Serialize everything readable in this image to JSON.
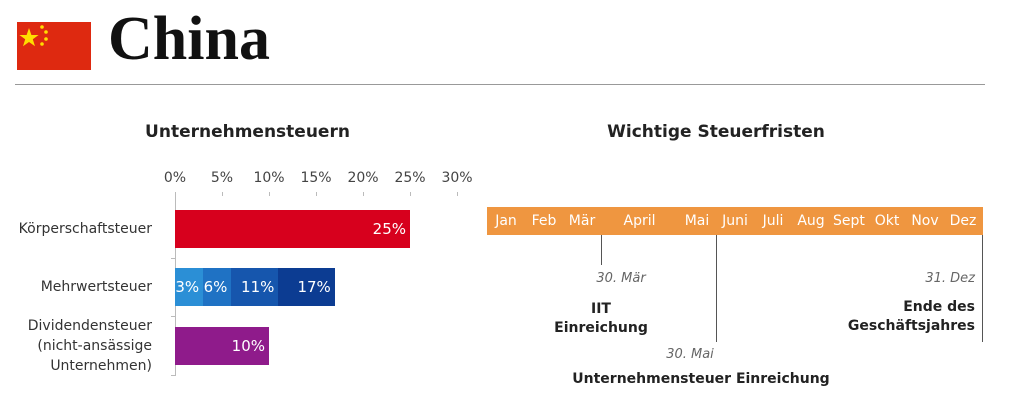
{
  "header": {
    "title": "China"
  },
  "chart_data": {
    "type": "bar",
    "orientation": "horizontal",
    "title": "Unternehmensteuern",
    "categories": [
      "Körperschaftsteuer",
      "Mehrwertsteuer",
      "Dividendensteuer\n(nicht-ansässige\nUnternehmen)"
    ],
    "values": [
      [
        25
      ],
      [
        3,
        6,
        11,
        17
      ],
      [
        10
      ]
    ],
    "value_labels": [
      [
        "25%"
      ],
      [
        "3%",
        "6%",
        "11%",
        "17%"
      ],
      [
        "10%"
      ]
    ],
    "colors": [
      [
        "#d7001d"
      ],
      [
        "#2b8fd6",
        "#1f72c4",
        "#1656ad",
        "#0c3c92"
      ],
      [
        "#8f1b8b"
      ]
    ],
    "xlim": [
      0,
      30
    ],
    "xticks": [
      {
        "value": 0,
        "label": "0%"
      },
      {
        "value": 5,
        "label": "5%"
      },
      {
        "value": 10,
        "label": "10%"
      },
      {
        "value": 15,
        "label": "15%"
      },
      {
        "value": 20,
        "label": "20%"
      },
      {
        "value": 25,
        "label": "25%"
      },
      {
        "value": 30,
        "label": "30%"
      }
    ]
  },
  "timeline": {
    "title": "Wichtige Steuerfristen",
    "months": [
      "Jan",
      "Feb",
      "Mär",
      "April",
      "Mai",
      "Juni",
      "Juli",
      "Aug",
      "Sept",
      "Okt",
      "Nov",
      "Dez"
    ],
    "events": [
      {
        "date": "30. Mär",
        "label": "IIT\nEinreichung"
      },
      {
        "date": "30. Mai",
        "label": "Unternehmensteuer Einreichung"
      },
      {
        "date": "31. Dez",
        "label": "Ende des\nGeschäftsjahres"
      }
    ]
  }
}
